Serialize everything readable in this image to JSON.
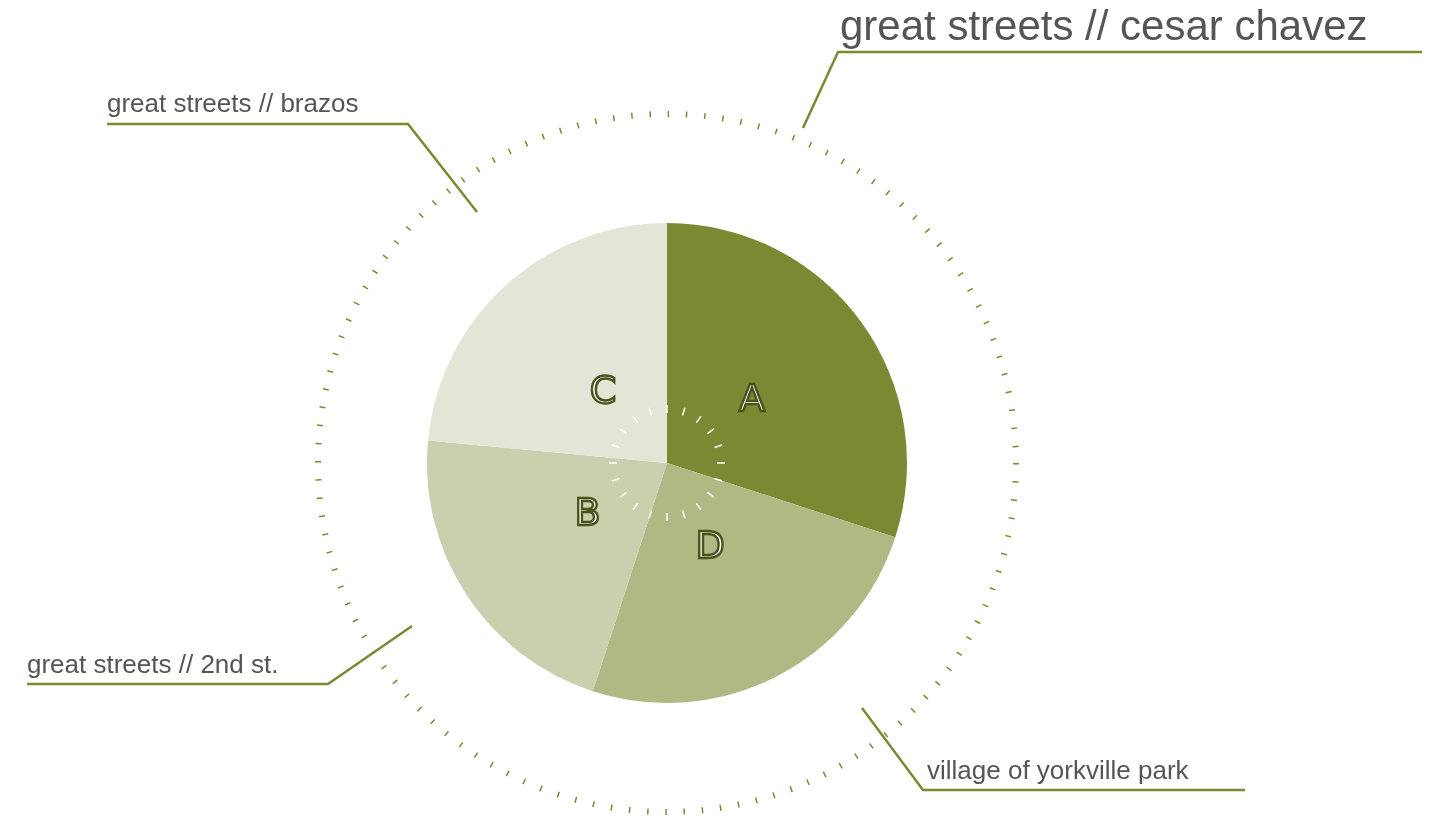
{
  "chart_data": {
    "type": "pie",
    "categories": [
      "A",
      "D",
      "B",
      "C"
    ],
    "values": [
      30,
      25,
      21.5,
      23.5
    ],
    "colors": [
      "#7a8a33",
      "#afb984",
      "#cad0ad",
      "#e3e6d6"
    ],
    "annotations": [
      "great streets // cesar chavez",
      "village of yorkville park",
      "great streets // 2nd st.",
      "great streets // brazos"
    ]
  }
}
